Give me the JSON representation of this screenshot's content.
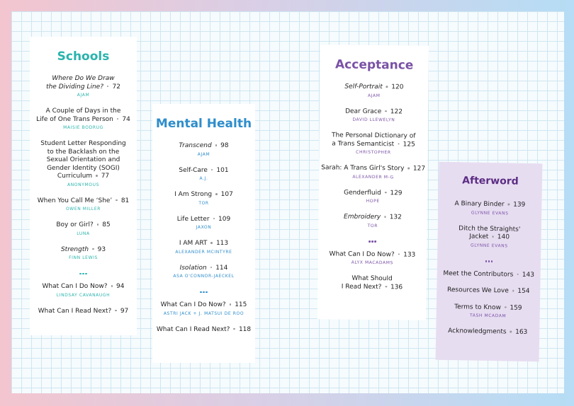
{
  "sections": [
    {
      "title": "Schools",
      "groups": [
        [
          {
            "title": [
              "Where Do We Draw",
              "the Dividing Line?"
            ],
            "italic": true,
            "page": 72,
            "author": "AJAM"
          },
          {
            "title": [
              "A Couple of Days in the",
              "Life of One Trans Person"
            ],
            "italic": false,
            "page": 74,
            "author": "MAISIE BODRUG"
          },
          {
            "title": [
              "Student Letter Responding",
              "to the Backlash on the",
              "Sexual Orientation and",
              "Gender Identity (SOGI)",
              "Curriculum"
            ],
            "italic": false,
            "page": 77,
            "author": "ANONYMOUS"
          },
          {
            "title": [
              "When You Call Me ‘She’"
            ],
            "italic": false,
            "page": 81,
            "author": "OWEN MILLER"
          },
          {
            "title": [
              "Boy or Girl?"
            ],
            "italic": false,
            "page": 85,
            "author": "LUNA"
          },
          {
            "title": [
              "Strength"
            ],
            "italic": true,
            "page": 93,
            "author": "FINN LEWIS"
          }
        ],
        [
          {
            "title": [
              "What Can I Do Now?"
            ],
            "italic": false,
            "page": 94,
            "author": "LINDSAY CAVANAUGH"
          },
          {
            "title": [
              "What Can I Read Next?"
            ],
            "italic": false,
            "page": 97
          }
        ]
      ]
    },
    {
      "title": "Mental Health",
      "groups": [
        [
          {
            "title": [
              "Transcend"
            ],
            "italic": true,
            "page": 98,
            "author": "AJAM"
          },
          {
            "title": [
              "Self-Care"
            ],
            "italic": false,
            "page": 101,
            "author": "A.J."
          },
          {
            "title": [
              "I Am Strong"
            ],
            "italic": false,
            "page": 107,
            "author": "TOR"
          },
          {
            "title": [
              "Life Letter"
            ],
            "italic": false,
            "page": 109,
            "author": "JAXON"
          },
          {
            "title": [
              "I AM ART"
            ],
            "italic": false,
            "page": 113,
            "author": "ALEXANDER MCINTYRE"
          },
          {
            "title": [
              "Isolation"
            ],
            "italic": true,
            "page": 114,
            "author": "ASA O'CONNOR-JAECKEL"
          }
        ],
        [
          {
            "title": [
              "What Can I Do Now?"
            ],
            "italic": false,
            "page": 115,
            "author": "ASTRI JACK + J. MATSUI DE ROO"
          },
          {
            "title": [
              "What Can I Read Next?"
            ],
            "italic": false,
            "page": 118
          }
        ]
      ]
    },
    {
      "title": "Acceptance",
      "groups": [
        [
          {
            "title": [
              "Self-Portrait"
            ],
            "italic": true,
            "page": 120,
            "author": "AJAM"
          },
          {
            "title": [
              "Dear Grace"
            ],
            "italic": false,
            "page": 122,
            "author": "DAVID LLEWELYN"
          },
          {
            "title": [
              "The Personal Dictionary of",
              "a Trans Semanticist"
            ],
            "italic": false,
            "page": 125,
            "author": "CHRISTOPHER"
          },
          {
            "title": [
              "Sarah: A Trans Girl's Story"
            ],
            "italic": false,
            "page": 127,
            "author": "ALEXANDER M-G"
          },
          {
            "title": [
              "Genderfluid"
            ],
            "italic": false,
            "page": 129,
            "author": "HOPE"
          },
          {
            "title": [
              "Embroidery"
            ],
            "italic": true,
            "page": 132,
            "author": "TOR"
          }
        ],
        [
          {
            "title": [
              "What Can I Do Now?"
            ],
            "italic": false,
            "page": 133,
            "author": "ALYX MACADAMS"
          },
          {
            "title": [
              "What Should",
              "I Read Next?"
            ],
            "italic": false,
            "page": 136
          }
        ]
      ]
    },
    {
      "title": "Afterword",
      "groups": [
        [
          {
            "title": [
              "A Binary Binder"
            ],
            "italic": false,
            "page": 139,
            "author": "GLYNNE EVANS"
          },
          {
            "title": [
              "Ditch the Straights'",
              "Jacket"
            ],
            "italic": false,
            "page": 140,
            "author": "GLYNNE EVANS"
          }
        ],
        [
          {
            "title": [
              "Meet the Contributors"
            ],
            "italic": false,
            "page": 143
          },
          {
            "title": [
              "Resources We Love"
            ],
            "italic": false,
            "page": 154
          },
          {
            "title": [
              "Terms to Know"
            ],
            "italic": false,
            "page": 159,
            "author": "TASH MCADAM"
          },
          {
            "title": [
              "Acknowledgments"
            ],
            "italic": false,
            "page": 163
          }
        ]
      ]
    }
  ]
}
